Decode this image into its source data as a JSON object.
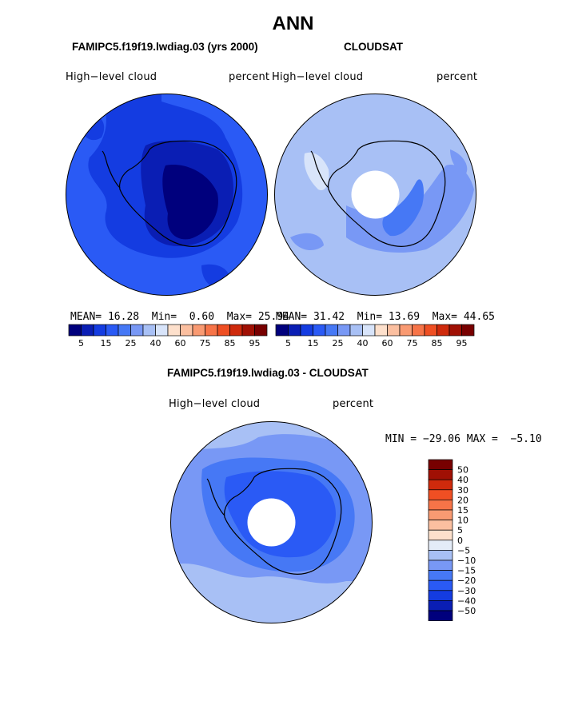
{
  "page_title": "ANN",
  "panels": [
    {
      "title": "FAMIPC5.f19f19.lwdiag.03 (yrs 2000)",
      "field_label": "High−level cloud",
      "units_label": "percent",
      "stats": {
        "mean_label": "MEAN=",
        "mean": "16.28",
        "min_label": "Min=",
        "min": "0.60",
        "max_label": "Max=",
        "max": "25.94"
      },
      "colorbar_ticks": [
        "5",
        "15",
        "25",
        "40",
        "60",
        "75",
        "85",
        "95"
      ]
    },
    {
      "title": "CLOUDSAT",
      "field_label": "High−level cloud",
      "units_label": "percent",
      "stats": {
        "mean_label": "MEAN=",
        "mean": "31.42",
        "min_label": "Min=",
        "min": "13.69",
        "max_label": "Max=",
        "max": "44.65"
      },
      "colorbar_ticks": [
        "5",
        "15",
        "25",
        "40",
        "60",
        "75",
        "85",
        "95"
      ]
    },
    {
      "title": "FAMIPC5.f19f19.lwdiag.03 - CLOUDSAT",
      "field_label": "High−level cloud",
      "units_label": "percent",
      "minmax": "MIN = −29.06 MAX =  −5.10",
      "colorbar_ticks": [
        "50",
        "40",
        "30",
        "20",
        "15",
        "10",
        "5",
        "0",
        "−5",
        "−10",
        "−15",
        "−20",
        "−30",
        "−40",
        "−50"
      ]
    }
  ],
  "colors": {
    "abs_scale": [
      "#00007d",
      "#0a1eb4",
      "#143ce1",
      "#2a5af5",
      "#4678f5",
      "#7898f5",
      "#a8c0f5",
      "#d8e4fa",
      "#fde0cc",
      "#fbbfa0",
      "#f99a72",
      "#f77448",
      "#ef4f23",
      "#cf2a0c",
      "#a01004",
      "#780000"
    ],
    "diff_scale": [
      "#780000",
      "#a01004",
      "#cf2a0c",
      "#ef4f23",
      "#f77448",
      "#f99a72",
      "#fbbfa0",
      "#fde0cc",
      "#e4ecf8",
      "#a8c0f5",
      "#7898f5",
      "#4678f5",
      "#2a5af5",
      "#143ce1",
      "#0a1eb4",
      "#00007d"
    ]
  }
}
